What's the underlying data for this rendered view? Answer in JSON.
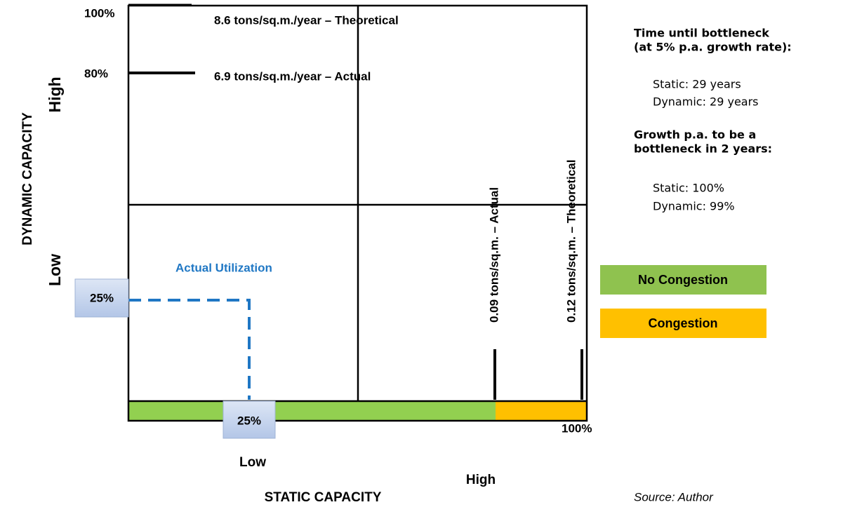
{
  "axes": {
    "y_label": "DYNAMIC CAPACITY",
    "y_high": "High",
    "y_low": "Low",
    "y_top": "100%",
    "y_80": "80%",
    "x_label": "STATIC CAPACITY",
    "x_low": "Low",
    "x_high": "High",
    "x_right": "100%"
  },
  "lines": {
    "theoretical_dynamic": "8.6 tons/sq.m./year – Theoretical",
    "actual_dynamic": "6.9 tons/sq.m./year – Actual",
    "actual_static": "0.09 tons/sq.m. – Actual",
    "theoretical_static": "0.12 tons/sq.m. – Theoretical"
  },
  "utilization": {
    "label": "Actual Utilization",
    "y_value": "25%",
    "x_value": "25%"
  },
  "info": {
    "title1": "Time until bottleneck",
    "title1b": "(at 5% p.a. growth rate):",
    "static1": "Static:  29 years",
    "dynamic1": "Dynamic:  29 years",
    "title2": "Growth p.a. to be a",
    "title2b": "bottleneck in 2 years:",
    "static2": "Static:  100%",
    "dynamic2": "Dynamic:  99%"
  },
  "legend": {
    "green": "No Congestion",
    "orange": "Congestion"
  },
  "source": "Source:  Author"
}
